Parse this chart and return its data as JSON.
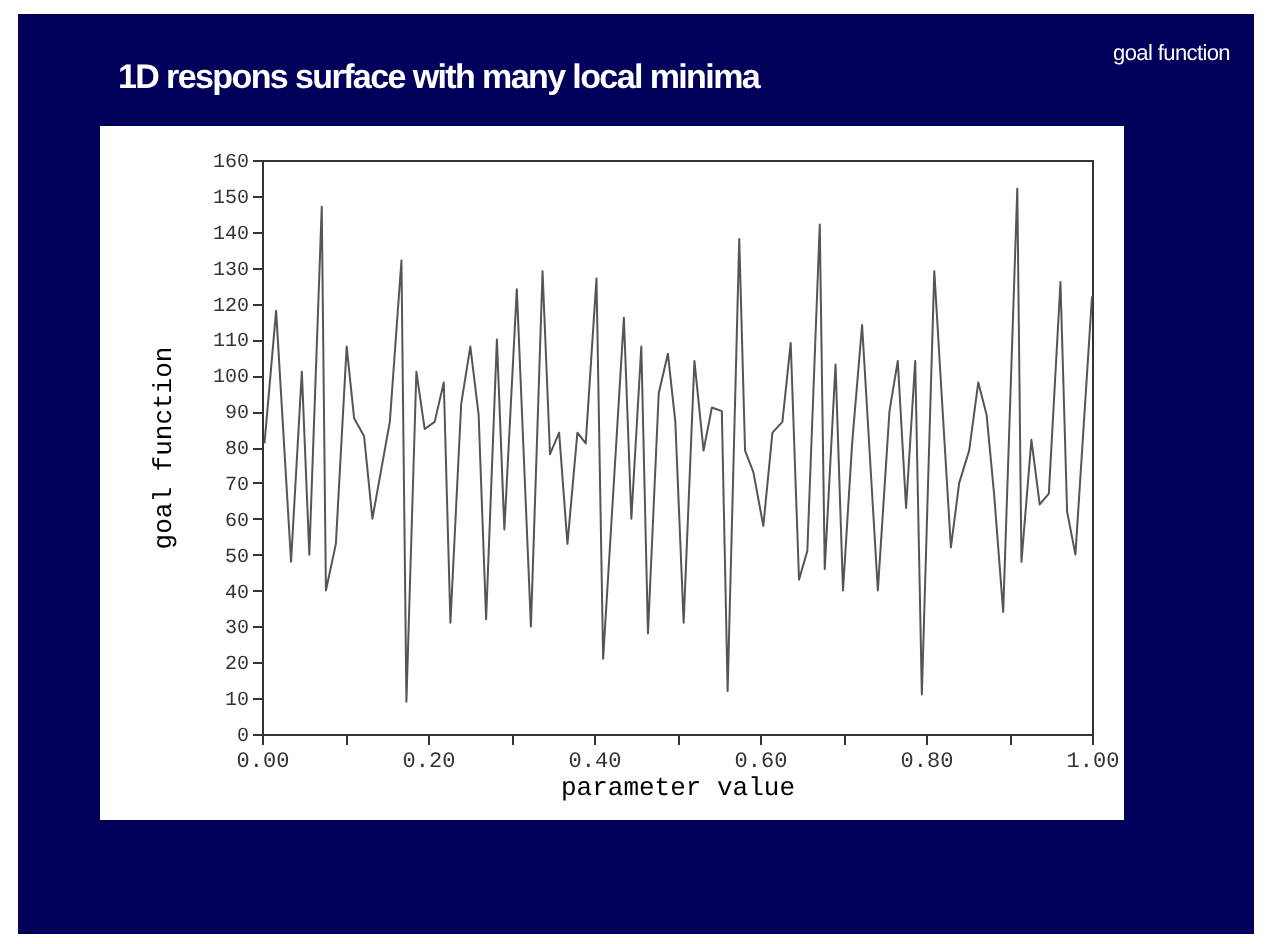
{
  "chart_data": {
    "type": "line",
    "title": "1D respons surface with many local minima",
    "annotations": [
      "goal function"
    ],
    "xlabel": "parameter value",
    "ylabel": "goal function",
    "x": [
      0.003,
      0.017,
      0.035,
      0.048,
      0.057,
      0.072,
      0.077,
      0.089,
      0.102,
      0.111,
      0.123,
      0.133,
      0.154,
      0.168,
      0.174,
      0.186,
      0.196,
      0.208,
      0.219,
      0.227,
      0.24,
      0.251,
      0.261,
      0.27,
      0.283,
      0.292,
      0.307,
      0.324,
      0.338,
      0.347,
      0.358,
      0.368,
      0.38,
      0.39,
      0.403,
      0.411,
      0.436,
      0.445,
      0.457,
      0.465,
      0.478,
      0.489,
      0.498,
      0.508,
      0.521,
      0.532,
      0.542,
      0.554,
      0.561,
      0.575,
      0.582,
      0.592,
      0.604,
      0.615,
      0.627,
      0.637,
      0.647,
      0.657,
      0.672,
      0.678,
      0.691,
      0.7,
      0.711,
      0.723,
      0.742,
      0.756,
      0.766,
      0.776,
      0.787,
      0.795,
      0.81,
      0.819,
      0.83,
      0.84,
      0.852,
      0.863,
      0.873,
      0.882,
      0.893,
      0.91,
      0.915,
      0.927,
      0.937,
      0.948,
      0.962,
      0.97,
      0.98,
      1.0
    ],
    "series": [
      {
        "color": "#555555",
        "values": [
          81,
          118,
          48,
          101,
          50,
          147,
          40,
          53,
          108,
          88,
          83,
          60,
          87,
          132,
          9,
          101,
          85,
          87,
          98,
          31,
          92,
          108,
          89,
          32,
          110,
          57,
          124,
          30,
          129,
          78,
          84,
          53,
          84,
          81,
          127,
          21,
          116,
          60,
          108,
          28,
          95,
          106,
          87,
          31,
          104,
          79,
          91,
          90,
          12,
          138,
          79,
          73,
          58,
          84,
          87,
          109,
          43,
          51,
          142,
          46,
          103,
          40,
          81,
          114,
          40,
          90,
          104,
          63,
          104,
          11,
          129,
          94,
          52,
          70,
          79,
          98,
          89,
          67,
          34,
          152,
          48,
          82,
          64,
          67,
          126,
          62,
          50,
          122
        ]
      }
    ],
    "xlim": [
      0,
      1
    ],
    "xticks": [
      {
        "value": 0,
        "label": "0.00"
      },
      {
        "value": 0.1,
        "label": null
      },
      {
        "value": 0.2,
        "label": "0.20"
      },
      {
        "value": 0.3,
        "label": null
      },
      {
        "value": 0.4,
        "label": "0.40"
      },
      {
        "value": 0.5,
        "label": null
      },
      {
        "value": 0.6,
        "label": "0.60"
      },
      {
        "value": 0.7,
        "label": null
      },
      {
        "value": 0.8,
        "label": "0.80"
      },
      {
        "value": 0.9,
        "label": null
      },
      {
        "value": 1,
        "label": "1.00"
      }
    ],
    "ylim": [
      0,
      160
    ],
    "yticks": [
      0,
      10,
      20,
      30,
      40,
      50,
      60,
      70,
      80,
      90,
      100,
      110,
      120,
      130,
      140,
      150,
      160
    ]
  }
}
